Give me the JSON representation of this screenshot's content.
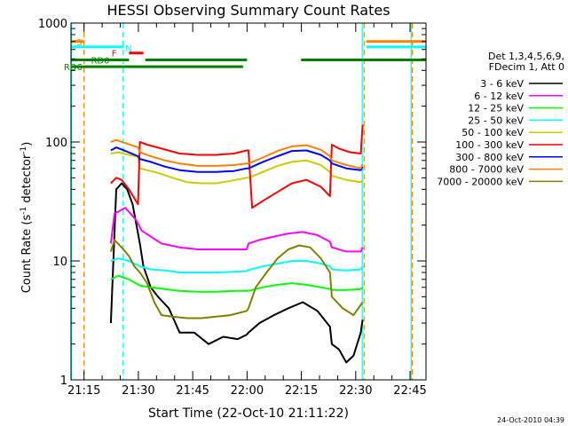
{
  "chart_data": {
    "type": "line",
    "title": "HESSI Observing Summary Count Rates",
    "xlabel": "Start Time (22-Oct-10 21:11:22)",
    "ylabel_main": "Count Rate (s",
    "ylabel_sup1": "-1",
    "ylabel_mid": " detector",
    "ylabel_sup2": "-1",
    "ylabel_end": ")",
    "x_unit": "minutes since 21:11:22",
    "xlim": [
      0,
      98
    ],
    "ylim": [
      1,
      1000
    ],
    "yscale": "log",
    "xticks": [
      {
        "label": "21:15",
        "value": 3.6
      },
      {
        "label": "21:30",
        "value": 18.6
      },
      {
        "label": "21:45",
        "value": 33.6
      },
      {
        "label": "22:00",
        "value": 48.6
      },
      {
        "label": "22:15",
        "value": 63.6
      },
      {
        "label": "22:30",
        "value": 78.6
      },
      {
        "label": "22:45",
        "value": 93.6
      }
    ],
    "yticks": [
      {
        "label": "1",
        "value": 1
      },
      {
        "label": "10",
        "value": 10
      },
      {
        "label": "100",
        "value": 100
      },
      {
        "label": "1000",
        "value": 1000
      }
    ],
    "legend_title": [
      "Det 1,3,4,5,6,9,",
      "FDecim 1, Att 0"
    ],
    "legend_position": "right",
    "series": [
      {
        "name": "3 - 6 keV",
        "color": "#000000",
        "x": [
          11.0,
          12.5,
          14.0,
          15.5,
          17.0,
          19.0,
          20.0,
          22.0,
          24.0,
          27.0,
          30.0,
          34.0,
          38.0,
          42.0,
          46.0,
          48.5,
          49.0,
          52.0,
          56.0,
          60.0,
          64.0,
          68.0,
          71.5,
          72.0,
          74.0,
          76.0,
          78.0,
          80.0,
          80.5
        ],
        "y": [
          3,
          40,
          45,
          40,
          30,
          14,
          9,
          6,
          5,
          4,
          2.5,
          2.5,
          2.0,
          2.3,
          2.2,
          2.4,
          2.5,
          3.0,
          3.5,
          4.0,
          4.5,
          3.8,
          2.8,
          2.0,
          1.8,
          1.4,
          1.6,
          2.5,
          3.2
        ]
      },
      {
        "name": "6 - 12 keV",
        "color": "#ff00ff",
        "x": [
          11.0,
          12.0,
          15.0,
          18.0,
          19.5,
          22.0,
          25.0,
          30.0,
          35.0,
          40.0,
          45.0,
          48.5,
          49.0,
          52.0,
          56.0,
          60.0,
          64.0,
          68.0,
          71.5,
          72.0,
          76.0,
          80.0,
          80.5
        ],
        "y": [
          14,
          25,
          28,
          22,
          18,
          16,
          14,
          13,
          12.5,
          12.5,
          12.5,
          12.5,
          14,
          15,
          16,
          17,
          17.5,
          16.5,
          14.5,
          13,
          12,
          12,
          13
        ]
      },
      {
        "name": "12 - 25 keV",
        "color": "#00ff00",
        "x": [
          11.0,
          13.0,
          16.0,
          19.0,
          22.0,
          26.0,
          30.0,
          35.0,
          40.0,
          45.0,
          48.5,
          49.0,
          53.0,
          57.0,
          61.0,
          65.0,
          69.0,
          71.5,
          72.0,
          76.0,
          80.0,
          80.5
        ],
        "y": [
          7,
          7.5,
          7,
          6.2,
          6.0,
          5.8,
          5.6,
          5.5,
          5.5,
          5.6,
          5.6,
          5.6,
          6.0,
          6.3,
          6.5,
          6.3,
          6.0,
          5.8,
          5.7,
          5.7,
          5.8,
          6.0
        ]
      },
      {
        "name": "25 - 50 keV",
        "color": "#00ffff",
        "x": [
          11.0,
          13.0,
          16.0,
          19.0,
          22.0,
          26.0,
          30.0,
          35.0,
          40.0,
          45.0,
          48.5,
          49.0,
          53.0,
          57.0,
          61.0,
          65.0,
          69.0,
          71.5,
          72.0,
          76.0,
          80.0,
          80.5
        ],
        "y": [
          10,
          10.5,
          10,
          9.0,
          8.5,
          8.3,
          8.0,
          8.0,
          8.0,
          8.1,
          8.2,
          8.4,
          9.0,
          9.5,
          10.0,
          10.0,
          9.5,
          9.0,
          8.5,
          8.3,
          8.5,
          9.0
        ]
      },
      {
        "name": "50 - 100 keV",
        "color": "#cccc00",
        "x": [
          11.0,
          13.0,
          16.0,
          18.5,
          19.0,
          21.0,
          24.0,
          28.0,
          32.0,
          36.0,
          40.0,
          44.0,
          48.5,
          49.0,
          53.0,
          57.0,
          61.0,
          65.0,
          69.0,
          71.5,
          72.0,
          76.0,
          80.0,
          80.5
        ],
        "y": [
          80,
          82,
          78,
          75,
          60,
          58,
          55,
          50,
          46,
          45,
          45,
          47,
          50,
          50,
          56,
          63,
          68,
          70,
          64,
          56,
          52,
          48,
          46,
          48
        ]
      },
      {
        "name": "100 - 300 keV",
        "color": "#ff0000",
        "x": [
          11.0,
          12.5,
          14.0,
          16.0,
          18.5,
          19.0,
          21.0,
          25.0,
          30.0,
          35.0,
          40.0,
          45.0,
          48.5,
          49.0,
          50.0,
          53.0,
          57.0,
          61.0,
          65.0,
          69.0,
          71.5,
          72.0,
          74.0,
          77.0,
          80.0,
          80.5
        ],
        "y": [
          45,
          50,
          48,
          40,
          30,
          100,
          95,
          88,
          80,
          78,
          78,
          80,
          85,
          85,
          28,
          32,
          38,
          45,
          48,
          42,
          35,
          95,
          88,
          82,
          80,
          140
        ]
      },
      {
        "name": "300 - 800 keV",
        "color": "#0000ff",
        "x": [
          11.0,
          12.5,
          15.0,
          18.5,
          19.0,
          22.0,
          26.0,
          30.0,
          35.0,
          40.0,
          45.0,
          48.5,
          49.0,
          53.0,
          57.0,
          61.0,
          65.0,
          69.0,
          71.5,
          72.0,
          76.0,
          80.0,
          80.5
        ],
        "y": [
          85,
          90,
          84,
          76,
          72,
          68,
          62,
          58,
          56,
          56,
          57,
          60,
          60,
          68,
          76,
          84,
          85,
          78,
          70,
          66,
          60,
          58,
          62
        ]
      },
      {
        "name": "800 - 7000 keV",
        "color": "#ff8000",
        "x": [
          11.0,
          12.5,
          15.0,
          18.5,
          19.0,
          22.0,
          26.0,
          30.0,
          35.0,
          40.0,
          45.0,
          48.5,
          49.0,
          53.0,
          57.0,
          61.0,
          65.0,
          69.0,
          71.5,
          72.0,
          76.0,
          80.0,
          80.5
        ],
        "y": [
          100,
          104,
          98,
          90,
          82,
          76,
          70,
          66,
          63,
          63,
          64,
          66,
          66,
          74,
          84,
          92,
          94,
          86,
          76,
          70,
          64,
          60,
          65
        ]
      },
      {
        "name": "7000 - 20000 keV",
        "color": "#808000",
        "x": [
          11.0,
          12.0,
          14.0,
          16.0,
          17.5,
          19.0,
          21.0,
          23.0,
          25.0,
          28.0,
          32.0,
          36.0,
          40.0,
          44.0,
          48.5,
          49.0,
          51.0,
          54.0,
          57.0,
          60.0,
          63.0,
          66.0,
          69.0,
          71.5,
          72.0,
          75.0,
          78.0,
          80.5
        ],
        "y": [
          12,
          15,
          13,
          11,
          9,
          8,
          6.5,
          4.5,
          3.5,
          3.4,
          3.3,
          3.3,
          3.4,
          3.5,
          3.8,
          4.0,
          6.0,
          8.0,
          10.5,
          12.5,
          13.5,
          13.0,
          10.5,
          8.0,
          5.0,
          4.0,
          3.5,
          4.5
        ]
      }
    ],
    "flag_labels": [
      {
        "text": "S",
        "color": "#ff8000"
      },
      {
        "text": "N",
        "color": "#00ffff"
      },
      {
        "text": "F",
        "color": "#ff0000"
      },
      {
        "text": "RD0",
        "color": "#008000"
      },
      {
        "text": "RD6",
        "color": "#008000"
      }
    ],
    "flag_bars": [
      {
        "color": "#ff8000",
        "y": 700,
        "segments": [
          [
            0,
            3.6
          ],
          [
            81.5,
            98
          ]
        ]
      },
      {
        "color": "#00ffff",
        "y": 630,
        "segments": [
          [
            0,
            14.5
          ],
          [
            81.5,
            98
          ]
        ]
      },
      {
        "color": "#ff0000",
        "y": 560,
        "segments": [
          [
            16,
            20
          ]
        ]
      },
      {
        "color": "#008000",
        "y": 490,
        "segments": [
          [
            0,
            16
          ],
          [
            20.5,
            48.6
          ],
          [
            63.5,
            98
          ]
        ]
      },
      {
        "color": "#008000",
        "y": 430,
        "segments": [
          [
            0,
            47.5
          ]
        ]
      }
    ],
    "vertical_lines": [
      {
        "x": 0.1,
        "color": "#00ffff",
        "style": "solid"
      },
      {
        "x": 3.6,
        "color": "#ff8000",
        "style": "dashed"
      },
      {
        "x": 14.4,
        "color": "#00ffff",
        "style": "dashed"
      },
      {
        "x": 80.4,
        "color": "#00ffff",
        "style": "solid"
      },
      {
        "x": 80.9,
        "color": "#ff8000",
        "style": "dashed"
      },
      {
        "x": 93.9,
        "color": "#00ffff",
        "style": "solid"
      },
      {
        "x": 94.2,
        "color": "#ff8000",
        "style": "dashed"
      }
    ],
    "timestamp": "24-Oct-2010 04:39"
  }
}
